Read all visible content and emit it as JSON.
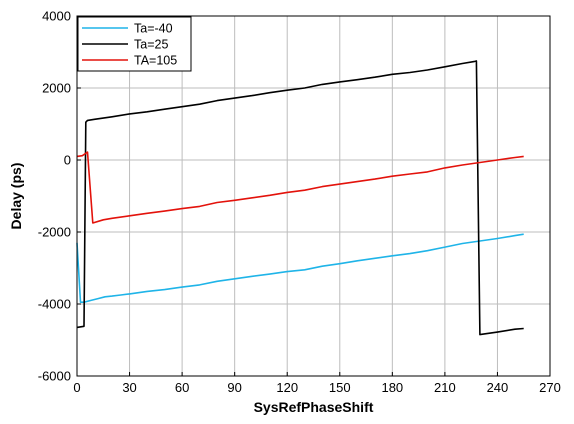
{
  "chart_data": {
    "type": "line",
    "xlabel": "SysRefPhaseShift",
    "ylabel": "Delay (ps)",
    "xlim": [
      0,
      270
    ],
    "ylim": [
      -6000,
      4000
    ],
    "xticks": [
      0,
      30,
      60,
      90,
      120,
      150,
      180,
      210,
      240,
      270
    ],
    "yticks": [
      -6000,
      -4000,
      -2000,
      0,
      2000,
      4000
    ],
    "grid": true,
    "legend": "top-left",
    "series": [
      {
        "name": "Ta=-40",
        "color": "#1fb4e8",
        "x": [
          0,
          2,
          4,
          8,
          12,
          16,
          20,
          25,
          30,
          40,
          50,
          60,
          70,
          80,
          90,
          100,
          110,
          120,
          130,
          140,
          150,
          160,
          170,
          180,
          190,
          200,
          210,
          220,
          230,
          240,
          250,
          255
        ],
        "y": [
          -2300,
          -3950,
          -3950,
          -3900,
          -3850,
          -3800,
          -3780,
          -3750,
          -3720,
          -3650,
          -3600,
          -3530,
          -3470,
          -3370,
          -3300,
          -3230,
          -3170,
          -3100,
          -3050,
          -2950,
          -2880,
          -2800,
          -2730,
          -2660,
          -2600,
          -2520,
          -2420,
          -2320,
          -2250,
          -2180,
          -2100,
          -2060
        ]
      },
      {
        "name": "Ta=25",
        "color": "#000000",
        "x": [
          0,
          4,
          5,
          6,
          10,
          20,
          30,
          40,
          50,
          60,
          70,
          80,
          90,
          100,
          110,
          120,
          130,
          140,
          150,
          160,
          170,
          180,
          190,
          200,
          210,
          220,
          227,
          228,
          230,
          240,
          250,
          255
        ],
        "y": [
          -4650,
          -4620,
          1050,
          1100,
          1130,
          1200,
          1280,
          1340,
          1410,
          1480,
          1550,
          1650,
          1720,
          1790,
          1870,
          1940,
          2000,
          2100,
          2170,
          2230,
          2300,
          2380,
          2430,
          2500,
          2590,
          2680,
          2740,
          2750,
          -4850,
          -4780,
          -4700,
          -4680
        ]
      },
      {
        "name": "TA=105",
        "color": "#e3120b",
        "x": [
          0,
          3,
          6,
          9,
          15,
          20,
          30,
          40,
          50,
          60,
          70,
          80,
          90,
          100,
          110,
          120,
          130,
          140,
          150,
          160,
          170,
          180,
          190,
          200,
          210,
          220,
          230,
          240,
          250,
          255
        ],
        "y": [
          100,
          120,
          220,
          -1750,
          -1660,
          -1620,
          -1550,
          -1480,
          -1420,
          -1350,
          -1290,
          -1180,
          -1120,
          -1050,
          -980,
          -900,
          -840,
          -740,
          -670,
          -600,
          -530,
          -450,
          -390,
          -330,
          -220,
          -140,
          -70,
          0,
          70,
          100
        ]
      }
    ]
  }
}
